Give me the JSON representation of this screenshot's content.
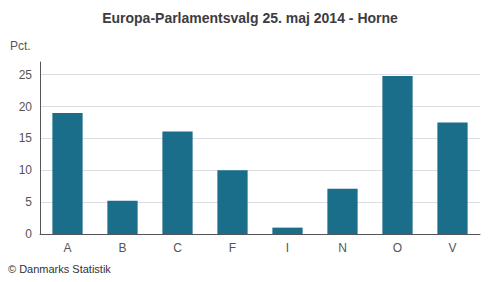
{
  "chart_data": {
    "type": "bar",
    "title": "Europa-Parlamentsvalg 25. maj 2014 - Horne",
    "categories": [
      "A",
      "B",
      "C",
      "F",
      "I",
      "N",
      "O",
      "V"
    ],
    "values": [
      19.0,
      5.2,
      16.1,
      10.0,
      1.0,
      7.1,
      24.8,
      17.5
    ],
    "color": "#1a6e8a",
    "ylabel": "Pct.",
    "footer": "© Danmarks Statistik",
    "ylim": [
      0,
      27
    ],
    "yticks": [
      0,
      5,
      10,
      15,
      20,
      25
    ],
    "grid": true
  }
}
